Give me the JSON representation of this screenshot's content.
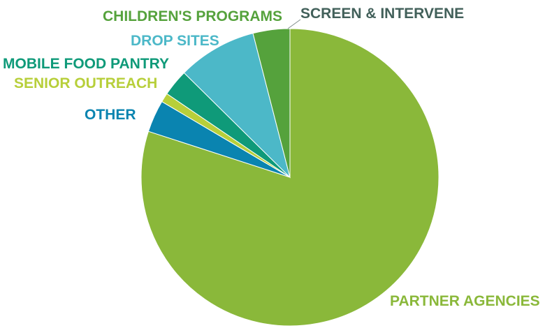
{
  "chart_data": {
    "type": "pie",
    "title": "",
    "start_angle_deg": 0,
    "direction": "clockwise",
    "legend": "none",
    "slices": [
      {
        "label": "PARTNER AGENCIES",
        "value": 80.0,
        "color": "#8ab83a",
        "label_color": "#8ab83a"
      },
      {
        "label": "OTHER",
        "value": 3.5,
        "color": "#0a84b0",
        "label_color": "#0a84b0"
      },
      {
        "label": "SENIOR OUTREACH",
        "value": 1.0,
        "color": "#b7cf3a",
        "label_color": "#b7cf3a"
      },
      {
        "label": "MOBILE FOOD PANTRY",
        "value": 2.9,
        "color": "#0f9a79",
        "label_color": "#0f9a79"
      },
      {
        "label": "DROP SITES",
        "value": 8.6,
        "color": "#4cb8c8",
        "label_color": "#4cb8c8"
      },
      {
        "label": "CHILDREN'S PROGRAMS",
        "value": 4.0,
        "color": "#55a23c",
        "label_color": "#55a23c"
      }
    ],
    "external_labels": [
      {
        "label": "SCREEN & INTERVENE",
        "color": "#42605a"
      }
    ]
  }
}
